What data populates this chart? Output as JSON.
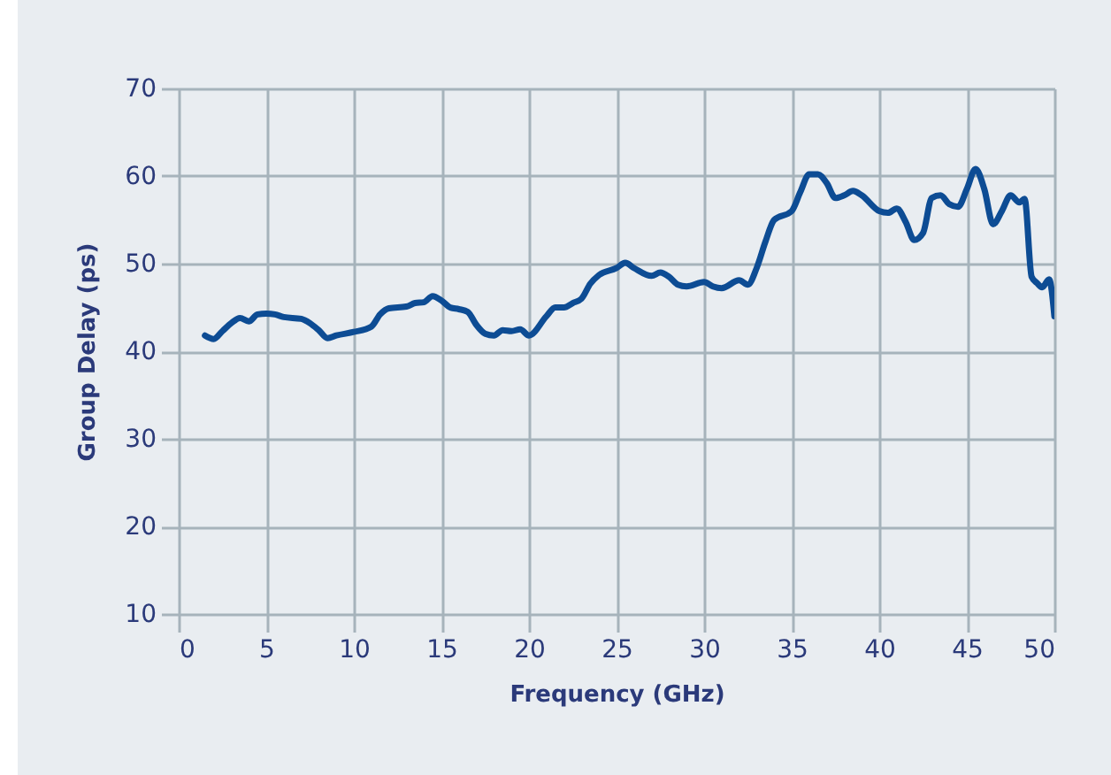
{
  "chart_data": {
    "type": "line",
    "xlabel": "Frequency (GHz)",
    "ylabel": "Group Delay (ps)",
    "x": [
      1.5,
      2,
      2.5,
      3,
      3.5,
      4,
      4.5,
      5,
      5.5,
      6,
      7,
      7.5,
      8,
      8.5,
      9,
      10,
      11,
      11.5,
      12,
      13,
      13.5,
      14,
      14.5,
      15,
      15.5,
      16,
      16.5,
      17,
      17.5,
      18,
      18.5,
      19,
      19.5,
      20,
      21,
      21.5,
      22,
      22.5,
      23,
      23.5,
      24,
      25,
      25.5,
      26,
      27,
      27.5,
      28,
      28.5,
      29,
      30,
      30.5,
      31,
      32,
      32.5,
      33,
      33.5,
      34,
      35,
      35.5,
      36,
      36.5,
      37,
      37.5,
      38,
      38.5,
      39,
      40,
      40.5,
      41,
      41.5,
      42,
      42.5,
      43,
      43.5,
      44,
      44.5,
      45,
      45.5,
      46,
      46.5,
      47,
      47.5,
      48,
      48.3,
      48.7,
      49,
      49.3,
      49.7,
      50
    ],
    "series": [
      {
        "color": "#0d4c94",
        "values": [
          41.8,
          41.4,
          42.3,
          43.2,
          43.8,
          43.4,
          44.2,
          44.3,
          44.2,
          43.9,
          43.7,
          43.2,
          42.4,
          41.5,
          41.8,
          42.2,
          42.8,
          44.2,
          44.9,
          45.1,
          45.5,
          45.6,
          46.3,
          45.8,
          45,
          44.8,
          44.5,
          43,
          42,
          41.8,
          42.4,
          42.3,
          42.5,
          41.8,
          44,
          45,
          45,
          45.5,
          46,
          47.7,
          48.7,
          49.5,
          50.1,
          49.5,
          48.6,
          49,
          48.5,
          47.6,
          47.4,
          47.9,
          47.4,
          47.2,
          48.1,
          47.6,
          49.5,
          52.5,
          55,
          56,
          58.2,
          60.2,
          60.2,
          59.2,
          57.5,
          57.8,
          58.3,
          57.8,
          56,
          55.8,
          56.3,
          54.8,
          52.7,
          53.5,
          57.5,
          57.8,
          56.8,
          56.5,
          58.5,
          60.8,
          58.5,
          54.5,
          56,
          57.8,
          57,
          57.4,
          48.5,
          47.8,
          47.3,
          48.2,
          44
        ]
      }
    ],
    "xlim": [
      0,
      50
    ],
    "xticks": [
      0,
      5,
      10,
      15,
      20,
      25,
      30,
      35,
      40,
      45,
      50
    ],
    "ylim": [
      10,
      70
    ],
    "yticks": [
      10,
      20,
      30,
      40,
      50,
      60,
      70
    ],
    "grid": true,
    "legend": false,
    "line_style": "solid",
    "marker": "none"
  }
}
